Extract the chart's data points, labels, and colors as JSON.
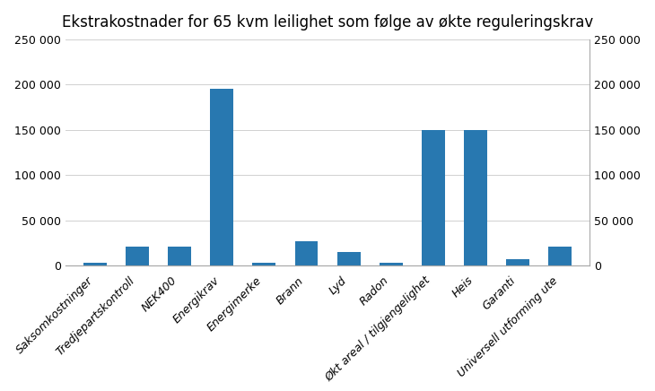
{
  "title": "Ekstrakostnader for 65 kvm leilighet som følge av økte reguleringskrav",
  "categories": [
    "Saksomkostninger",
    "Tredjepartskontroll",
    "NEK400",
    "Energikrav",
    "Energimerke",
    "Brann",
    "Lyd",
    "Radon",
    "Økt areal / tilgjengelighet",
    "Heis",
    "Garanti",
    "Universell utforming ute"
  ],
  "values": [
    3000,
    21000,
    21000,
    195000,
    3000,
    27000,
    15000,
    3000,
    150000,
    150000,
    7000,
    21000
  ],
  "bar_color": "#2878b0",
  "ylim": [
    0,
    250000
  ],
  "yticks": [
    0,
    50000,
    100000,
    150000,
    200000,
    250000
  ],
  "ytick_labels": [
    "0",
    "50 000",
    "100 000",
    "150 000",
    "200 000",
    "250 000"
  ],
  "title_fontsize": 12,
  "tick_fontsize": 9,
  "background_color": "#ffffff",
  "grid_color": "#d0d0d0",
  "spine_color": "#aaaaaa"
}
